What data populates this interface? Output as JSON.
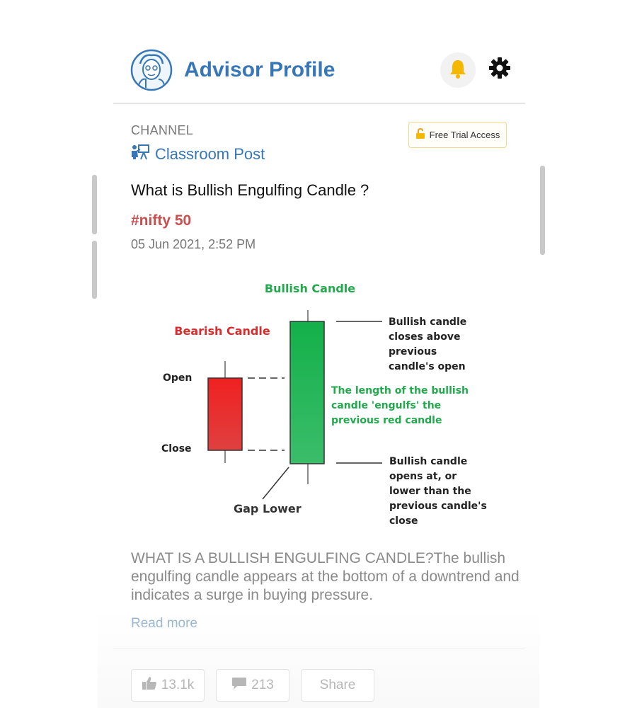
{
  "header": {
    "title": "Advisor Profile"
  },
  "channel": {
    "label": "CHANNEL",
    "name": "Classroom Post",
    "badge": "Free Trial Access"
  },
  "post": {
    "title": "What is Bullish Engulfing Candle ?",
    "tag": "#nifty 50",
    "date": "05 Jun 2021, 2:52 PM",
    "summary": "WHAT IS A BULLISH ENGULFING CANDLE?The bullish engulfing candle appears at the bottom of a downtrend and indicates a surge in buying pressure.",
    "read_more": "Read more"
  },
  "figure": {
    "bullish_title": "Bullish Candle",
    "bearish_title": "Bearish Candle",
    "open_label": "Open",
    "close_label": "Close",
    "gap_label": "Gap Lower",
    "note_top": [
      "Bullish candle",
      "closes above",
      "previous",
      "candle's open"
    ],
    "note_middle": [
      "The length of the bullish",
      "candle 'engulfs' the",
      "previous red candle"
    ],
    "note_bottom": [
      "Bullish candle",
      "opens at, or",
      "lower than the",
      "previous candle's",
      "close"
    ],
    "colors": {
      "bullish": "#22b14c",
      "bearish": "#e62727",
      "bullish_text": "#22a94c",
      "bearish_text": "#d92b2b"
    }
  },
  "actions": {
    "likes": "13.1k",
    "comments": "213",
    "share": "Share"
  },
  "colors": {
    "brand": "#3777b7",
    "tag": "#c94f4f",
    "bell": "#f5b800"
  },
  "icons": [
    "profile-logo-icon",
    "bell-icon",
    "gear-icon",
    "classroom-icon",
    "lock-open-icon",
    "thumbs-up-icon",
    "comment-icon"
  ]
}
